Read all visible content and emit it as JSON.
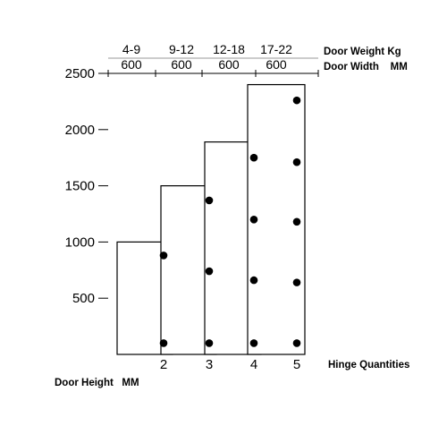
{
  "chart_data": {
    "type": "bar",
    "categories": [
      "2",
      "3",
      "4",
      "5"
    ],
    "values": [
      1000,
      1500,
      1890,
      2400
    ],
    "hinge_positions": [
      [
        100,
        880
      ],
      [
        100,
        740,
        1370
      ],
      [
        100,
        660,
        1200,
        1750
      ],
      [
        100,
        640,
        1180,
        1710,
        2260
      ]
    ],
    "weight_labels": [
      "4-9",
      "9-12",
      "12-18",
      "17-22"
    ],
    "width_labels": [
      "600",
      "600",
      "600",
      "600"
    ],
    "y_ticks": [
      500,
      1000,
      1500,
      2000,
      2500
    ],
    "ylim": [
      0,
      2500
    ],
    "grid": false,
    "xlabel": "Hinge Quantities",
    "ylabel": "Door Height   MM",
    "top_label_weight": "Door Weight  Kg",
    "top_label_width": "Door Width    MM"
  }
}
